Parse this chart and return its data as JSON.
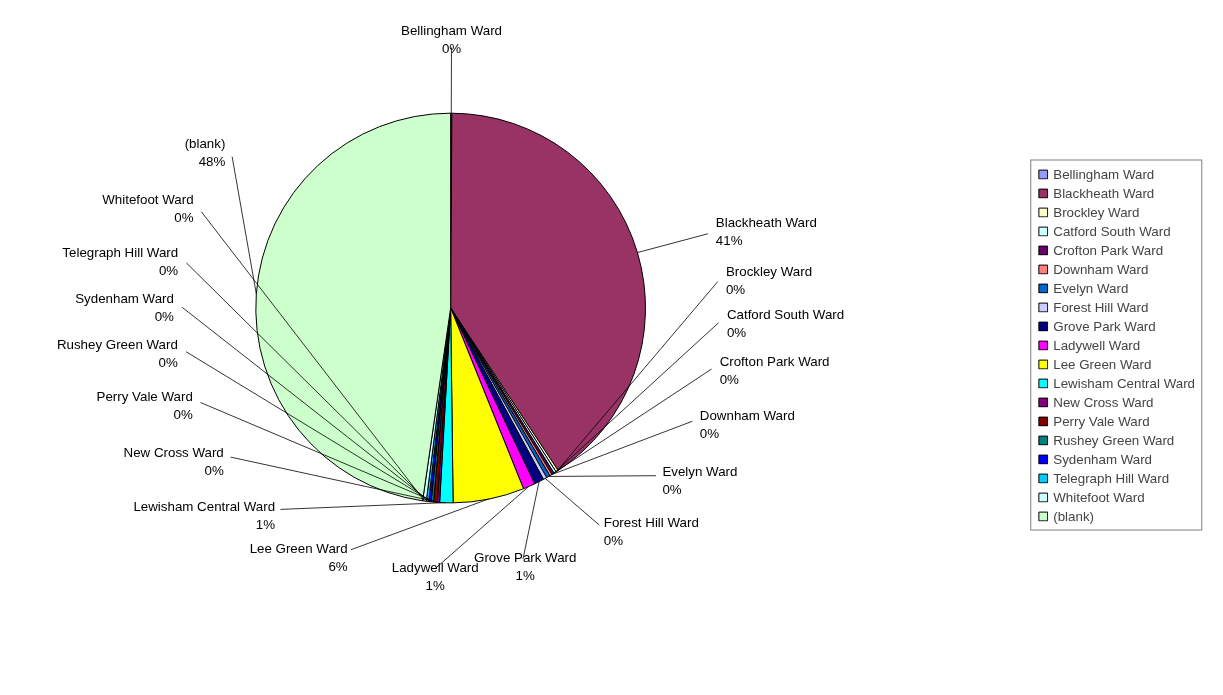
{
  "chart_data": {
    "type": "pie",
    "categories": [
      "Bellingham Ward",
      "Blackheath Ward",
      "Brockley Ward",
      "Catford South Ward",
      "Crofton Park Ward",
      "Downham Ward",
      "Evelyn Ward",
      "Forest Hill Ward",
      "Grove Park Ward",
      "Ladywell Ward",
      "Lee Green Ward",
      "Lewisham Central Ward",
      "New Cross Ward",
      "Perry Vale Ward",
      "Rushey Green Ward",
      "Sydenham Ward",
      "Telegraph Hill Ward",
      "Whitefoot Ward",
      "(blank)"
    ],
    "values": [
      0.1,
      40.6,
      0.2,
      0.2,
      0.2,
      0.2,
      0.3,
      0.3,
      0.8,
      1.0,
      5.9,
      1.1,
      0.2,
      0.3,
      0.2,
      0.2,
      0.2,
      0.3,
      47.7
    ],
    "value_labels": [
      "0%",
      "41%",
      "0%",
      "0%",
      "0%",
      "0%",
      "0%",
      "0%",
      "1%",
      "1%",
      "6%",
      "1%",
      "0%",
      "0%",
      "0%",
      "0%",
      "0%",
      "0%",
      "48%"
    ],
    "colors": [
      "#9999ff",
      "#993366",
      "#ffffcc",
      "#ccffff",
      "#660066",
      "#ff8080",
      "#0066cc",
      "#ccccff",
      "#000080",
      "#ff00ff",
      "#ffff00",
      "#00ffff",
      "#800080",
      "#800000",
      "#008080",
      "#0000ff",
      "#00ccff",
      "#ccffff",
      "#ccffcc"
    ],
    "legend": "right"
  }
}
